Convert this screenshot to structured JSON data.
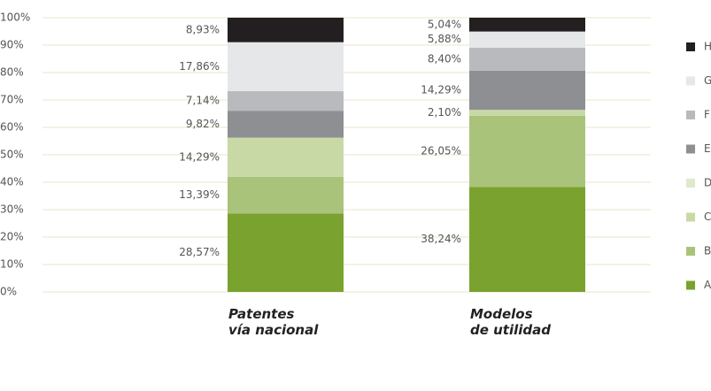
{
  "chart_data": {
    "type": "stacked_bar_100",
    "categories": [
      "Patentes vía nacional",
      "Modelos de utilidad"
    ],
    "series": [
      {
        "name": "A",
        "color": "#7aa22e",
        "values": [
          28.57,
          38.24
        ],
        "value_labels": [
          "28,57%",
          "38,24%"
        ]
      },
      {
        "name": "B",
        "color": "#a9c47a",
        "values": [
          13.39,
          26.05
        ],
        "value_labels": [
          "13,39%",
          "26,05%"
        ]
      },
      {
        "name": "C",
        "color": "#c8d9a6",
        "values": [
          14.29,
          2.1
        ],
        "value_labels": [
          "14,29%",
          "2,10%"
        ]
      },
      {
        "name": "D",
        "color": "#dfe9cc",
        "values": [
          null,
          null
        ]
      },
      {
        "name": "E",
        "color": "#8e8f92",
        "values": [
          9.82,
          14.29
        ],
        "value_labels": [
          "9,82%",
          "14,29%"
        ]
      },
      {
        "name": "F",
        "color": "#b9babd",
        "values": [
          7.14,
          8.4
        ],
        "value_labels": [
          "7,14%",
          "8,40%"
        ]
      },
      {
        "name": "G",
        "color": "#e6e7e8",
        "values": [
          17.86,
          5.88
        ],
        "value_labels": [
          "17,86%",
          "5,88%"
        ]
      },
      {
        "name": "H",
        "color": "#231f20",
        "values": [
          8.93,
          5.04
        ],
        "value_labels": [
          "8,93%",
          "5,04%"
        ]
      }
    ],
    "ylim": [
      0,
      100
    ],
    "yticks": [
      {
        "value": 0,
        "label": "0%"
      },
      {
        "value": 10,
        "label": "10%"
      },
      {
        "value": 20,
        "label": "20%"
      },
      {
        "value": 30,
        "label": "30%"
      },
      {
        "value": 40,
        "label": "40%"
      },
      {
        "value": 50,
        "label": "50%"
      },
      {
        "value": 60,
        "label": "60%"
      },
      {
        "value": 70,
        "label": "70%"
      },
      {
        "value": 80,
        "label": "80%"
      },
      {
        "value": 90,
        "label": "90%"
      },
      {
        "value": 100,
        "label": "100%"
      }
    ],
    "grid": true,
    "legend": "right"
  }
}
